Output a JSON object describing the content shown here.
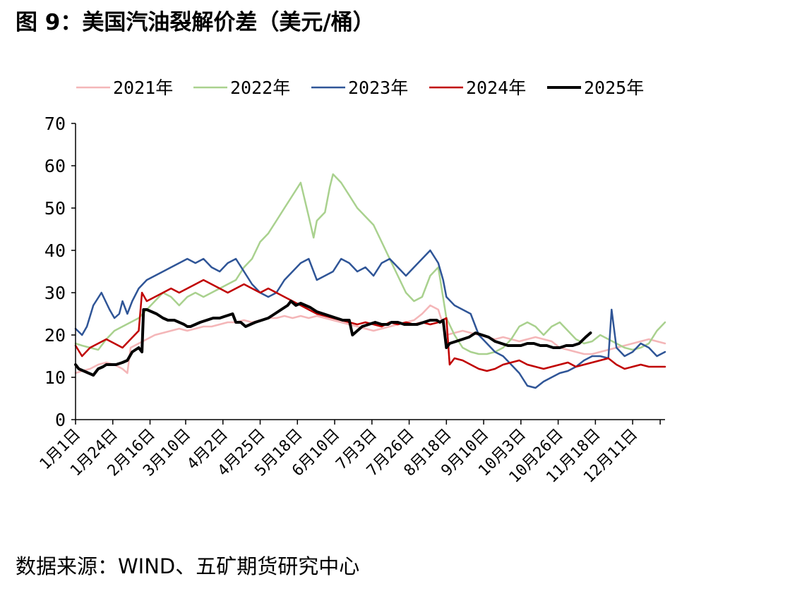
{
  "title": "图 9：美国汽油裂解价差（美元/桶）",
  "source": "数据来源：WIND、五矿期货研究中心",
  "chart_data": {
    "type": "line",
    "ylim": [
      0,
      70
    ],
    "yticks": [
      0,
      10,
      20,
      30,
      40,
      50,
      60,
      70
    ],
    "xlim": [
      1,
      365
    ],
    "xticks": [
      {
        "day": 1,
        "label": "1月1日"
      },
      {
        "day": 24,
        "label": "1月24日"
      },
      {
        "day": 47,
        "label": "2月16日"
      },
      {
        "day": 69,
        "label": "3月10日"
      },
      {
        "day": 92,
        "label": "4月2日"
      },
      {
        "day": 115,
        "label": "4月25日"
      },
      {
        "day": 138,
        "label": "5月18日"
      },
      {
        "day": 161,
        "label": "6月10日"
      },
      {
        "day": 184,
        "label": "7月3日"
      },
      {
        "day": 207,
        "label": "7月26日"
      },
      {
        "day": 230,
        "label": "8月18日"
      },
      {
        "day": 253,
        "label": "9月10日"
      },
      {
        "day": 276,
        "label": "10月3日"
      },
      {
        "day": 299,
        "label": "10月26日"
      },
      {
        "day": 322,
        "label": "11月18日"
      },
      {
        "day": 345,
        "label": "12月11日"
      }
    ],
    "grid": false,
    "legend_position": "top",
    "series": [
      {
        "name": "2021年",
        "color": "#F4B6B8",
        "width": 2.5,
        "x": [
          1,
          5,
          10,
          15,
          20,
          25,
          30,
          33,
          35,
          40,
          45,
          50,
          55,
          60,
          65,
          70,
          75,
          80,
          85,
          90,
          95,
          100,
          105,
          110,
          115,
          120,
          125,
          130,
          135,
          140,
          145,
          150,
          155,
          160,
          165,
          170,
          175,
          180,
          185,
          190,
          195,
          200,
          205,
          210,
          215,
          220,
          225,
          230,
          235,
          240,
          245,
          250,
          255,
          260,
          265,
          270,
          275,
          280,
          285,
          290,
          295,
          300,
          305,
          310,
          315,
          320,
          325,
          330,
          335,
          340,
          345,
          350,
          355,
          360,
          365
        ],
        "y": [
          11,
          11.5,
          12,
          13,
          13.5,
          13,
          12,
          11,
          17,
          18,
          19,
          20,
          20.5,
          21,
          21.5,
          21,
          21.5,
          22,
          22,
          22.5,
          23,
          23,
          23.5,
          23,
          23.5,
          24,
          24,
          24.5,
          24,
          24.5,
          24,
          24.5,
          24,
          23.5,
          23,
          22.5,
          22,
          21.5,
          21,
          21.5,
          22,
          22.5,
          23,
          23.5,
          25,
          27,
          26,
          20,
          20.5,
          21,
          20.5,
          20,
          19.5,
          19,
          19.5,
          19,
          18.5,
          19,
          19.5,
          19,
          18.5,
          17,
          16.5,
          16,
          15.5,
          15.5,
          16,
          16.5,
          17,
          17.5,
          18,
          18.5,
          19,
          18.5,
          18
        ]
      },
      {
        "name": "2022年",
        "color": "#A9D18E",
        "width": 2.5,
        "x": [
          1,
          5,
          10,
          15,
          20,
          25,
          30,
          35,
          40,
          45,
          50,
          55,
          60,
          65,
          70,
          75,
          80,
          85,
          90,
          95,
          100,
          105,
          110,
          115,
          120,
          125,
          130,
          135,
          140,
          145,
          148,
          150,
          155,
          158,
          160,
          165,
          170,
          175,
          180,
          185,
          190,
          195,
          200,
          205,
          210,
          215,
          220,
          225,
          230,
          235,
          240,
          245,
          250,
          255,
          260,
          265,
          270,
          275,
          280,
          285,
          290,
          295,
          300,
          305,
          310,
          315,
          320,
          325,
          330,
          335,
          340,
          345,
          350,
          355,
          360,
          365
        ],
        "y": [
          18,
          17.5,
          17,
          16.5,
          19,
          21,
          22,
          23,
          24,
          26,
          28,
          30,
          29,
          27,
          29,
          30,
          29,
          30,
          31,
          32,
          33,
          36,
          38,
          42,
          44,
          47,
          50,
          53,
          56,
          48,
          43,
          47,
          49,
          55,
          58,
          56,
          53,
          50,
          48,
          46,
          42,
          38,
          34,
          30,
          28,
          29,
          34,
          36,
          24,
          20,
          17,
          16,
          15.5,
          15.5,
          16,
          17,
          19,
          22,
          23,
          22,
          20,
          22,
          23,
          21,
          19,
          18,
          18.5,
          20,
          19,
          18,
          17,
          16.5,
          17,
          18,
          21,
          23
        ]
      },
      {
        "name": "2023年",
        "color": "#2F5597",
        "width": 2.5,
        "x": [
          1,
          5,
          8,
          12,
          17,
          22,
          25,
          28,
          30,
          33,
          36,
          40,
          45,
          50,
          55,
          60,
          65,
          70,
          75,
          80,
          85,
          90,
          95,
          100,
          105,
          110,
          115,
          120,
          125,
          130,
          135,
          140,
          145,
          150,
          155,
          160,
          165,
          170,
          175,
          180,
          185,
          190,
          195,
          200,
          205,
          210,
          215,
          220,
          225,
          228,
          230,
          235,
          240,
          245,
          250,
          255,
          260,
          265,
          270,
          275,
          280,
          285,
          290,
          295,
          300,
          305,
          310,
          315,
          320,
          325,
          330,
          332,
          335,
          340,
          345,
          350,
          355,
          360,
          365
        ],
        "y": [
          21.5,
          20,
          22,
          27,
          30,
          26,
          24,
          25,
          28,
          25,
          28,
          31,
          33,
          34,
          35,
          36,
          37,
          38,
          37,
          38,
          36,
          35,
          37,
          38,
          35,
          32,
          30,
          29,
          30,
          33,
          35,
          37,
          38,
          33,
          34,
          35,
          38,
          37,
          35,
          36,
          34,
          37,
          38,
          36,
          34,
          36,
          38,
          40,
          37,
          33,
          29,
          27,
          26,
          25,
          20,
          18,
          16,
          15,
          13,
          11,
          8,
          7.5,
          9,
          10,
          11,
          11.5,
          12.5,
          14,
          15,
          15,
          14.5,
          26,
          17,
          15,
          16,
          18,
          17,
          15,
          16
        ]
      },
      {
        "name": "2024年",
        "color": "#C00000",
        "width": 2.5,
        "x": [
          1,
          5,
          10,
          15,
          20,
          25,
          30,
          35,
          40,
          42,
          45,
          50,
          55,
          60,
          65,
          70,
          75,
          80,
          85,
          90,
          95,
          100,
          105,
          110,
          115,
          120,
          125,
          130,
          135,
          140,
          145,
          150,
          155,
          160,
          165,
          170,
          175,
          180,
          185,
          190,
          195,
          200,
          205,
          210,
          215,
          220,
          225,
          230,
          232,
          235,
          240,
          245,
          250,
          255,
          260,
          265,
          270,
          275,
          280,
          285,
          290,
          295,
          300,
          305,
          310,
          315,
          320,
          325,
          330,
          335,
          340,
          345,
          350,
          355,
          360,
          365
        ],
        "y": [
          17.5,
          15,
          17,
          18,
          19,
          18,
          17,
          19,
          21,
          30,
          28,
          29,
          30,
          31,
          30,
          31,
          32,
          33,
          32,
          31,
          30,
          31,
          32,
          31,
          30,
          31,
          30,
          29,
          28,
          27,
          26,
          25,
          24.5,
          24,
          23.5,
          23,
          22.5,
          23,
          22.5,
          22,
          23,
          22.5,
          23,
          22.5,
          23,
          22.5,
          23,
          24,
          13,
          14.5,
          14,
          13,
          12,
          11.5,
          12,
          13,
          13.5,
          14,
          13,
          12.5,
          12,
          12.5,
          13,
          13.5,
          12.5,
          13,
          13.5,
          14,
          14.5,
          13,
          12,
          12.5,
          13,
          12.5,
          12.5,
          12.5
        ]
      },
      {
        "name": "2025年",
        "color": "#000000",
        "width": 4,
        "x": [
          1,
          3,
          6,
          9,
          12,
          15,
          18,
          20,
          23,
          26,
          30,
          33,
          36,
          40,
          42,
          43,
          45,
          48,
          51,
          55,
          58,
          62,
          65,
          68,
          70,
          72,
          75,
          78,
          82,
          86,
          90,
          94,
          98,
          100,
          103,
          106,
          109,
          112,
          116,
          120,
          124,
          128,
          132,
          134,
          137,
          140,
          143,
          146,
          150,
          154,
          158,
          162,
          166,
          170,
          172,
          175,
          178,
          182,
          186,
          190,
          194,
          196,
          200,
          204,
          208,
          212,
          216,
          220,
          224,
          226,
          228,
          230,
          232,
          236,
          240,
          244,
          248,
          252,
          256,
          260,
          264,
          268,
          272,
          276,
          280,
          284,
          288,
          292,
          296,
          300,
          304,
          308,
          312,
          316,
          319
        ],
        "y": [
          13,
          12,
          11.5,
          11,
          10.5,
          12,
          12.5,
          13,
          13,
          13,
          13.5,
          14,
          16,
          17,
          16,
          26,
          26,
          25.5,
          25,
          24,
          23.5,
          23.5,
          23,
          22.5,
          22,
          22,
          22.5,
          23,
          23.5,
          24,
          24,
          24.5,
          25,
          23,
          23,
          22,
          22.5,
          23,
          23.5,
          24,
          25,
          26,
          27,
          28,
          27,
          27.5,
          27,
          26.5,
          25.5,
          25,
          24.5,
          24,
          23.5,
          23.5,
          20,
          21,
          22,
          22.5,
          23,
          22.5,
          22.5,
          23,
          23,
          22.5,
          22.5,
          22.5,
          23,
          23.5,
          23.5,
          23,
          23.5,
          17,
          18,
          18.5,
          19,
          19.5,
          20.5,
          20,
          19.5,
          18.5,
          18,
          17.5,
          17.5,
          17.5,
          18,
          18,
          17.5,
          17.5,
          17,
          17,
          17.5,
          17.5,
          18,
          19.5,
          20.5
        ]
      }
    ]
  }
}
